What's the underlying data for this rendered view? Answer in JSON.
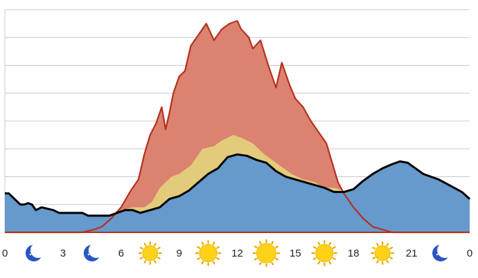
{
  "chart_data": {
    "type": "area",
    "title": "",
    "xlabel": "",
    "ylabel": "",
    "xlim": [
      0,
      24
    ],
    "ylim": [
      0,
      8
    ],
    "grid": true,
    "legend": "none",
    "x_ticks": [
      {
        "hour": 0,
        "label": "0",
        "icon": "moon"
      },
      {
        "hour": 3,
        "label": "3",
        "icon": "moon"
      },
      {
        "hour": 6,
        "label": "6",
        "icon": "sun"
      },
      {
        "hour": 9,
        "label": "9",
        "icon": "sun"
      },
      {
        "hour": 12,
        "label": "12",
        "icon": "sun"
      },
      {
        "hour": 15,
        "label": "15",
        "icon": "sun"
      },
      {
        "hour": 18,
        "label": "18",
        "icon": "sun"
      },
      {
        "hour": 21,
        "label": "21",
        "icon": "moon"
      },
      {
        "hour": 24,
        "label": "0",
        "icon": "moon"
      }
    ],
    "icon_hours": [
      1.5,
      4.5,
      7.5,
      10.5,
      13.5,
      16.5,
      19.5,
      22.5
    ],
    "icon_types": [
      "moon",
      "moon",
      "sun",
      "sun",
      "sun",
      "sun",
      "sun",
      "moon"
    ],
    "icon_scale": [
      0,
      0,
      0.55,
      0.8,
      1.0,
      0.8,
      0.55,
      0
    ],
    "series": [
      {
        "color": "#dc8270",
        "stroke": "#b5301e",
        "points": [
          [
            0,
            0
          ],
          [
            4,
            0
          ],
          [
            4.6,
            0.1
          ],
          [
            5,
            0.2
          ],
          [
            5.5,
            0.5
          ],
          [
            6,
            0.9
          ],
          [
            6.5,
            1.5
          ],
          [
            6.9,
            1.9
          ],
          [
            7.2,
            2.8
          ],
          [
            7.5,
            3.5
          ],
          [
            7.8,
            3.9
          ],
          [
            8.1,
            4.5
          ],
          [
            8.3,
            3.7
          ],
          [
            8.5,
            4.3
          ],
          [
            8.7,
            5.0
          ],
          [
            9,
            5.6
          ],
          [
            9.3,
            5.8
          ],
          [
            9.6,
            6.7
          ],
          [
            10,
            7.1
          ],
          [
            10.4,
            7.5
          ],
          [
            10.8,
            6.9
          ],
          [
            11.2,
            7.3
          ],
          [
            11.6,
            7.5
          ],
          [
            12,
            7.6
          ],
          [
            12.2,
            7.3
          ],
          [
            12.6,
            7.0
          ],
          [
            12.8,
            6.6
          ],
          [
            13.2,
            6.9
          ],
          [
            13.6,
            6.0
          ],
          [
            14,
            5.2
          ],
          [
            14.3,
            6.1
          ],
          [
            14.7,
            5.3
          ],
          [
            15,
            4.8
          ],
          [
            15.4,
            4.5
          ],
          [
            15.8,
            4.0
          ],
          [
            16.2,
            3.6
          ],
          [
            16.6,
            3.2
          ],
          [
            16.9,
            2.5
          ],
          [
            17.2,
            1.8
          ],
          [
            17.5,
            1.4
          ],
          [
            18,
            0.9
          ],
          [
            18.5,
            0.5
          ],
          [
            19,
            0.2
          ],
          [
            20,
            0
          ],
          [
            24,
            0
          ]
        ]
      },
      {
        "color": "#e3cb7c",
        "stroke": "#b5301e",
        "points": [
          [
            0,
            0
          ],
          [
            4,
            0
          ],
          [
            4.5,
            0.1
          ],
          [
            5,
            0.2
          ],
          [
            5.6,
            0.5
          ],
          [
            6,
            0.8
          ],
          [
            6.6,
            0.9
          ],
          [
            7.2,
            0.9
          ],
          [
            7.6,
            1.1
          ],
          [
            8,
            1.6
          ],
          [
            8.6,
            2.0
          ],
          [
            9,
            2.1
          ],
          [
            9.6,
            2.4
          ],
          [
            10.2,
            3.0
          ],
          [
            10.8,
            3.1
          ],
          [
            11.2,
            3.3
          ],
          [
            11.8,
            3.5
          ],
          [
            12.2,
            3.4
          ],
          [
            12.8,
            3.2
          ],
          [
            13.4,
            2.8
          ],
          [
            14,
            2.5
          ],
          [
            14.8,
            2.1
          ],
          [
            15.4,
            1.9
          ],
          [
            16,
            1.8
          ],
          [
            16.5,
            1.6
          ],
          [
            17,
            1.6
          ],
          [
            17.5,
            1.5
          ],
          [
            18,
            1.1
          ],
          [
            18.5,
            0.7
          ],
          [
            19,
            0.3
          ],
          [
            19.5,
            0.1
          ],
          [
            20,
            0
          ],
          [
            24,
            0
          ]
        ]
      },
      {
        "color": "#6699cc",
        "stroke": "#000000",
        "points": [
          [
            0,
            1.4
          ],
          [
            0.2,
            1.4
          ],
          [
            0.5,
            1.2
          ],
          [
            0.8,
            1.0
          ],
          [
            1.0,
            1.0
          ],
          [
            1.2,
            1.05
          ],
          [
            1.4,
            1.0
          ],
          [
            1.6,
            0.8
          ],
          [
            1.9,
            0.9
          ],
          [
            2.2,
            0.85
          ],
          [
            2.5,
            0.8
          ],
          [
            2.8,
            0.7
          ],
          [
            3.1,
            0.7
          ],
          [
            3.4,
            0.7
          ],
          [
            3.7,
            0.7
          ],
          [
            4.0,
            0.7
          ],
          [
            4.3,
            0.6
          ],
          [
            4.6,
            0.6
          ],
          [
            5.0,
            0.6
          ],
          [
            5.4,
            0.6
          ],
          [
            5.8,
            0.7
          ],
          [
            6.2,
            0.8
          ],
          [
            6.6,
            0.8
          ],
          [
            7.0,
            0.7
          ],
          [
            7.5,
            0.8
          ],
          [
            8,
            0.9
          ],
          [
            8.5,
            1.2
          ],
          [
            9,
            1.3
          ],
          [
            9.5,
            1.5
          ],
          [
            10,
            1.8
          ],
          [
            10.5,
            2.1
          ],
          [
            11,
            2.3
          ],
          [
            11.5,
            2.7
          ],
          [
            12,
            2.8
          ],
          [
            12.5,
            2.75
          ],
          [
            13,
            2.6
          ],
          [
            13.5,
            2.5
          ],
          [
            14,
            2.2
          ],
          [
            14.5,
            2.0
          ],
          [
            15,
            1.9
          ],
          [
            15.5,
            1.8
          ],
          [
            16,
            1.7
          ],
          [
            16.5,
            1.6
          ],
          [
            17,
            1.45
          ],
          [
            17.5,
            1.45
          ],
          [
            18,
            1.55
          ],
          [
            18.5,
            1.85
          ],
          [
            19,
            2.1
          ],
          [
            19.5,
            2.3
          ],
          [
            20,
            2.45
          ],
          [
            20.4,
            2.55
          ],
          [
            20.8,
            2.5
          ],
          [
            21.2,
            2.3
          ],
          [
            21.6,
            2.1
          ],
          [
            22,
            2.0
          ],
          [
            22.4,
            1.9
          ],
          [
            22.8,
            1.75
          ],
          [
            23.2,
            1.6
          ],
          [
            23.6,
            1.45
          ],
          [
            24,
            1.2
          ]
        ]
      }
    ],
    "line_color": "#000000"
  }
}
